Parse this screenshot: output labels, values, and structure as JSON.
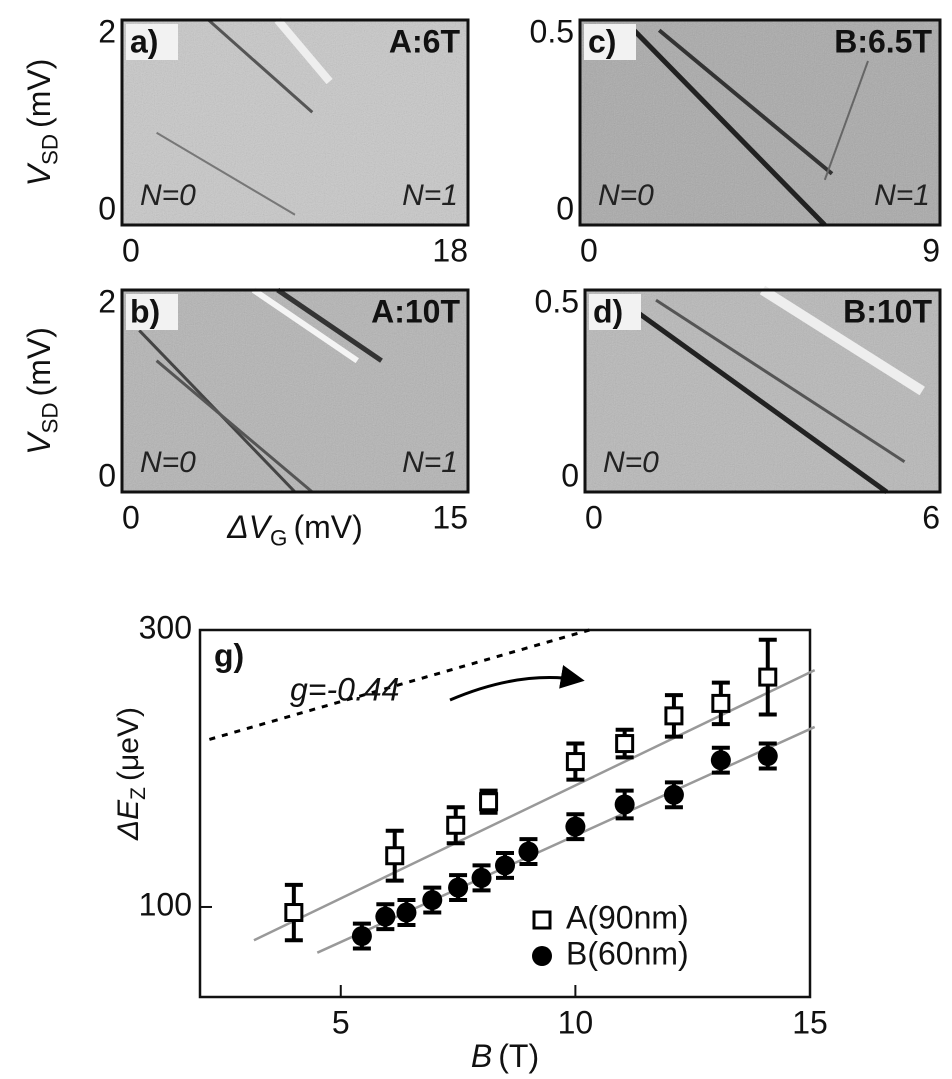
{
  "chart_data": [
    {
      "type": "image",
      "panel": "a)",
      "title": "A:6T",
      "ylabel": {
        "text": "V",
        "sub": "SD",
        "unit": "(mV)"
      },
      "xlim": [
        0,
        18
      ],
      "xticks": [
        0,
        18
      ],
      "ylim": [
        0,
        2
      ],
      "yticks": [
        0,
        2
      ],
      "annotations": [
        "N=0",
        "N=1"
      ]
    },
    {
      "type": "image",
      "panel": "c)",
      "title": "B:6.5T",
      "xlim": [
        0,
        9
      ],
      "xticks": [
        0,
        9
      ],
      "ylim": [
        0,
        0.5
      ],
      "yticks": [
        0,
        0.5
      ],
      "annotations": [
        "N=0",
        "N=1"
      ]
    },
    {
      "type": "image",
      "panel": "b)",
      "title": "A:10T",
      "ylabel": {
        "text": "V",
        "sub": "SD",
        "unit": "(mV)"
      },
      "xlabel": {
        "text": "ΔV",
        "sub": "G",
        "unit": "(mV)"
      },
      "xlim": [
        0,
        15
      ],
      "xticks": [
        0,
        15
      ],
      "ylim": [
        0,
        2
      ],
      "yticks": [
        0,
        2
      ],
      "annotations": [
        "N=0",
        "N=1"
      ]
    },
    {
      "type": "image",
      "panel": "d)",
      "title": "B:10T",
      "xlim": [
        0,
        6
      ],
      "xticks": [
        0,
        6
      ],
      "ylim": [
        0,
        0.5
      ],
      "yticks": [
        0,
        0.5
      ],
      "annotations": [
        "N=0"
      ]
    },
    {
      "type": "scatter",
      "panel": "g)",
      "xlabel": {
        "text": "B",
        "unit": "(T)"
      },
      "ylabel": {
        "text": "ΔE",
        "sub": "Z",
        "unit": "(μeV)"
      },
      "xlim": [
        2,
        15
      ],
      "xticks": [
        5,
        10,
        15
      ],
      "ylim": [
        35,
        300
      ],
      "yticks": [
        100,
        300
      ],
      "series": [
        {
          "name": "A(90nm)",
          "marker": "open-square",
          "color": "#000000",
          "x": [
            4.0,
            6.15,
            7.45,
            8.15,
            10.0,
            11.05,
            12.1,
            13.1,
            14.1
          ],
          "values": [
            96,
            137,
            159,
            176,
            205,
            218,
            238,
            247,
            266
          ],
          "errors": [
            20,
            18,
            13,
            8,
            13,
            10,
            15,
            15,
            27
          ]
        },
        {
          "name": "B(60nm)",
          "marker": "filled-circle",
          "color": "#000000",
          "x": [
            5.45,
            5.95,
            6.4,
            6.95,
            7.5,
            8.0,
            8.5,
            9.0,
            10.0,
            11.05,
            12.1,
            13.1,
            14.1
          ],
          "values": [
            79,
            93,
            96,
            105,
            114,
            121,
            130,
            140,
            158,
            174,
            181,
            206,
            209
          ],
          "errors": [
            9,
            9,
            9,
            9,
            9,
            9,
            9,
            9,
            9,
            10,
            9,
            9,
            9
          ]
        }
      ],
      "fit_lines": [
        {
          "color": "#999999",
          "x": [
            3.15,
            15.1
          ],
          "values": [
            76,
            271
          ]
        },
        {
          "color": "#999999",
          "x": [
            4.5,
            15.1
          ],
          "values": [
            67,
            230
          ]
        }
      ],
      "reference_line": {
        "label": "g=-0.44",
        "color": "#000000",
        "x": [
          2.2,
          10.3
        ],
        "values": [
          221,
          300
        ]
      }
    }
  ]
}
